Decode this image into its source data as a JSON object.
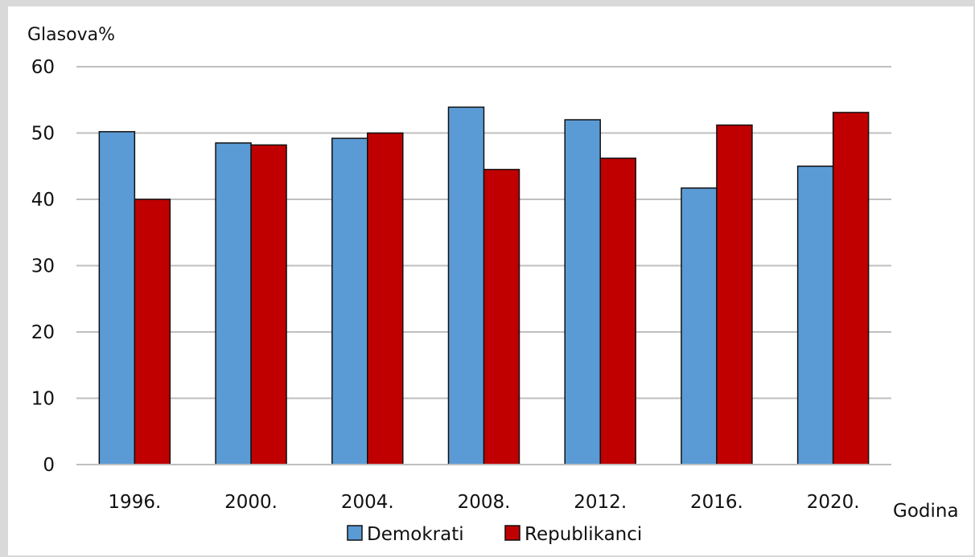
{
  "chart_data": {
    "type": "bar",
    "ylabel": "Glasova%",
    "xlabel": "Godina",
    "categories": [
      "1996.",
      "2000.",
      "2004.",
      "2008.",
      "2012.",
      "2016.",
      "2020."
    ],
    "series": [
      {
        "name": "Demokrati",
        "color": "#5b9bd5",
        "values": [
          50.2,
          48.5,
          49.2,
          53.9,
          52.0,
          41.7,
          45.0
        ]
      },
      {
        "name": "Republikanci",
        "color": "#c00000",
        "values": [
          40.0,
          48.2,
          50.0,
          44.5,
          46.2,
          51.2,
          53.1
        ]
      }
    ],
    "ylim": [
      0,
      60
    ],
    "yticks": [
      0,
      10,
      20,
      30,
      40,
      50,
      60
    ],
    "grid": true,
    "legend_position": "bottom"
  }
}
